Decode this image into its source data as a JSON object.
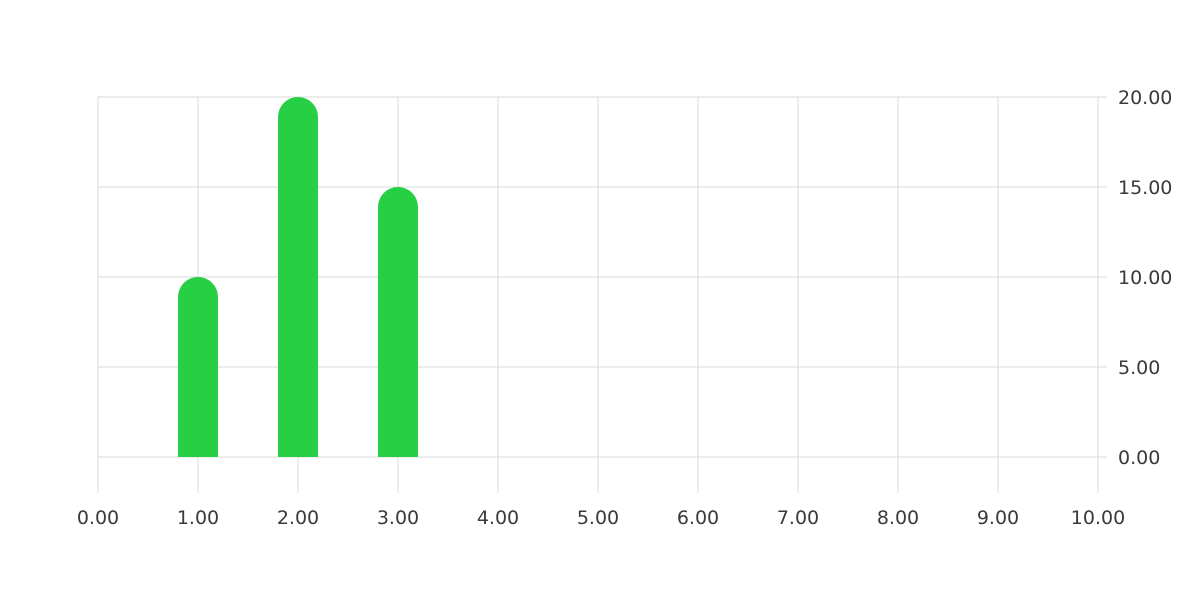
{
  "chart_data": {
    "type": "bar",
    "title": "",
    "xlabel": "",
    "ylabel": "",
    "x": [
      1,
      2,
      3
    ],
    "values": [
      10,
      20,
      15
    ],
    "xlim": [
      0,
      10
    ],
    "ylim": [
      0,
      20
    ],
    "x_ticks": [
      "0.00",
      "1.00",
      "2.00",
      "3.00",
      "4.00",
      "5.00",
      "6.00",
      "7.00",
      "8.00",
      "9.00",
      "10.00"
    ],
    "y_ticks": [
      "0.00",
      "5.00",
      "10.00",
      "15.00",
      "20.00"
    ],
    "y_axis_position": "right",
    "bar_color": "#26cf43",
    "bar_style": "rounded-top",
    "grid": true,
    "legend": "none"
  }
}
